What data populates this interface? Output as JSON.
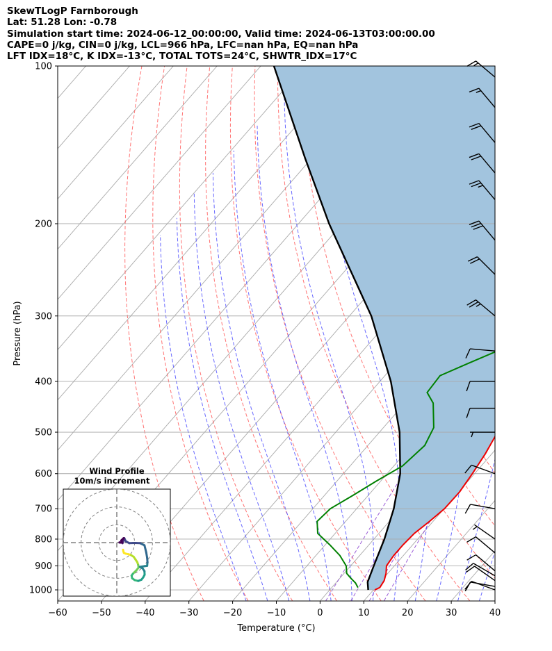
{
  "header": {
    "title": "SkewTLogP Farnborough",
    "latlon": "Lat: 51.28   Lon: -0.78",
    "times": "Simulation start time: 2024-06-12_00:00:00, Valid time: 2024-06-13T03:00:00.00",
    "params1": "CAPE=0 j/kg, CIN=0 j/kg, LCL=966 hPa, LFC=nan hPa, EQ=nan hPa",
    "params2": "LFT IDX=18$^\\circ$C, K IDX=-13$^\\circ$C, TOTAL TOTS=24$^\\circ$C, SHWTR_IDX=17$^\\circ$C"
  },
  "chart_data": {
    "type": "line",
    "subtype": "skew-t log-p diagram",
    "xlabel": "Temperature ($^\\circ$C)",
    "ylabel": "Pressure (hPa)",
    "xlim": [
      -60,
      40
    ],
    "ylim": [
      1050,
      100
    ],
    "y_scale": "log",
    "x_ticks": [
      -60,
      -50,
      -40,
      -30,
      -20,
      -10,
      0,
      10,
      20,
      30,
      40
    ],
    "x_tick_labels": [
      "−60",
      "−50",
      "−40",
      "−30",
      "−20",
      "−10",
      "0",
      "10",
      "20",
      "30",
      "40"
    ],
    "y_ticks": [
      1000,
      900,
      800,
      700,
      600,
      500,
      400,
      300,
      200,
      100
    ],
    "y_tick_labels": [
      "1000",
      "900",
      "800",
      "700",
      "600",
      "500",
      "400",
      "300",
      "200",
      "100"
    ],
    "grid": true,
    "colors": {
      "temperature": "#ee0000",
      "dewpoint": "#008000",
      "parcel": "#000000",
      "shade": "#a2c4de",
      "dry_adiabats": "#ff5a5a",
      "moist_adiabats": "#4e4eff",
      "mixing_ratio": "#8a3fd0",
      "isotherms": "#a9a9a9"
    },
    "series": [
      {
        "key": "temperature",
        "pressure": [
          1000,
          990,
          960,
          930,
          900,
          860,
          820,
          780,
          740,
          700,
          650,
          600,
          550,
          500,
          450,
          400,
          350,
          320,
          280,
          240,
          220,
          200,
          180,
          160,
          140,
          125,
          110,
          100
        ],
        "values": [
          10.3,
          11,
          10.6,
          9.6,
          8.2,
          7.8,
          7.8,
          8.1,
          9.2,
          10.1,
          10.2,
          9.5,
          8.5,
          7,
          4,
          0,
          -4.6,
          -5.1,
          -7.5,
          -11.2,
          -10.8,
          -8.2,
          -2.8,
          1.9,
          6.8,
          10.5,
          14.2,
          17.6
        ]
      },
      {
        "key": "dewpoint",
        "pressure": [
          990,
          970,
          950,
          930,
          900,
          860,
          820,
          780,
          740,
          700,
          660,
          620,
          580,
          530,
          490,
          440,
          420,
          390,
          370,
          340,
          320,
          290,
          260,
          240,
          215,
          190,
          175,
          160,
          145,
          120,
          100
        ],
        "values": [
          6,
          4.5,
          2.5,
          0.6,
          -1,
          -4.5,
          -9,
          -14,
          -16.5,
          -16,
          -13.5,
          -11,
          -8,
          -7,
          -8.5,
          -13.5,
          -17,
          -17.4,
          -13.5,
          -7,
          -5,
          -6,
          -8.5,
          -10.5,
          -11.5,
          -11.5,
          -12,
          -12.5,
          -12,
          -2,
          6
        ]
      },
      {
        "key": "parcel",
        "pressure": [
          1000,
          966,
          900,
          800,
          700,
          600,
          500,
          400,
          300,
          200,
          150,
          100
        ],
        "values": [
          8.8,
          7.1,
          5.3,
          2.4,
          -1.5,
          -7,
          -15.4,
          -27.5,
          -45,
          -73,
          -91.5,
          -117
        ]
      }
    ],
    "wind_barbs": [
      {
        "pressure": 1000,
        "speed_kt": 10,
        "from_deg": 290
      },
      {
        "pressure": 985,
        "speed_kt": 10,
        "from_deg": 280
      },
      {
        "pressure": 960,
        "speed_kt": 10,
        "from_deg": 305
      },
      {
        "pressure": 940,
        "speed_kt": 10,
        "from_deg": 300
      },
      {
        "pressure": 920,
        "speed_kt": 10,
        "from_deg": 310
      },
      {
        "pressure": 850,
        "speed_kt": 10,
        "from_deg": 310
      },
      {
        "pressure": 800,
        "speed_kt": 5,
        "from_deg": 305
      },
      {
        "pressure": 700,
        "speed_kt": 10,
        "from_deg": 280
      },
      {
        "pressure": 600,
        "speed_kt": 10,
        "from_deg": 290
      },
      {
        "pressure": 500,
        "speed_kt": 5,
        "from_deg": 270
      },
      {
        "pressure": 450,
        "speed_kt": 10,
        "from_deg": 270
      },
      {
        "pressure": 400,
        "speed_kt": 10,
        "from_deg": 270
      },
      {
        "pressure": 350,
        "speed_kt": 10,
        "from_deg": 275
      },
      {
        "pressure": 300,
        "speed_kt": 25,
        "from_deg": 310
      },
      {
        "pressure": 250,
        "speed_kt": 20,
        "from_deg": 315
      },
      {
        "pressure": 215,
        "speed_kt": 30,
        "from_deg": 320
      },
      {
        "pressure": 180,
        "speed_kt": 25,
        "from_deg": 320
      },
      {
        "pressure": 160,
        "speed_kt": 20,
        "from_deg": 320
      },
      {
        "pressure": 140,
        "speed_kt": 20,
        "from_deg": 320
      },
      {
        "pressure": 120,
        "speed_kt": 15,
        "from_deg": 320
      },
      {
        "pressure": 105,
        "speed_kt": 15,
        "from_deg": 310
      }
    ],
    "hodograph": {
      "title": "Wind Profile",
      "subtitle": "10m/s increment",
      "rings_ms": [
        10,
        20,
        30
      ],
      "range_ms": 30,
      "points": [
        [
          3.5,
          -4
        ],
        [
          3.7,
          -5
        ],
        [
          4,
          -5.8
        ],
        [
          5,
          -6.2
        ],
        [
          6.5,
          -6.5
        ],
        [
          8,
          -7
        ],
        [
          9.5,
          -8
        ],
        [
          10.5,
          -9.5
        ],
        [
          11.5,
          -11
        ],
        [
          12,
          -12.5
        ],
        [
          12.2,
          -14
        ],
        [
          11,
          -15.5
        ],
        [
          10,
          -16.5
        ],
        [
          9,
          -17.5
        ],
        [
          8.3,
          -18.5
        ],
        [
          8.6,
          -20
        ],
        [
          10,
          -21
        ],
        [
          12,
          -21.5
        ],
        [
          13.8,
          -20.8
        ],
        [
          14.8,
          -19.5
        ],
        [
          15.6,
          -18
        ],
        [
          15.5,
          -16
        ],
        [
          14.5,
          -14.5
        ],
        [
          13,
          -13.6
        ],
        [
          17,
          -13
        ],
        [
          17.2,
          -11
        ],
        [
          17,
          -8.5
        ],
        [
          16.5,
          -5.5
        ],
        [
          15.5,
          -1.5
        ],
        [
          13,
          -0.3
        ],
        [
          10,
          -0.2
        ],
        [
          7,
          -0.3
        ],
        [
          5,
          0.8
        ],
        [
          4.2,
          2.5
        ],
        [
          3.6,
          1
        ],
        [
          3.2,
          -0.3
        ],
        [
          2.8,
          0.2
        ],
        [
          2,
          0
        ],
        [
          1.5,
          0.1
        ],
        [
          3,
          0
        ],
        [
          2.5,
          1.2
        ],
        [
          3.8,
          2.5
        ]
      ]
    }
  }
}
